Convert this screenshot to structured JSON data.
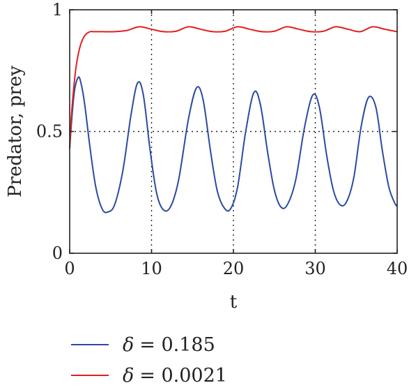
{
  "chart_data": {
    "type": "line",
    "title": "",
    "xlabel": "t",
    "ylabel": "Predator, prey",
    "xlim": [
      0,
      40
    ],
    "ylim": [
      0,
      1
    ],
    "xticks": [
      0,
      10,
      20,
      30,
      40
    ],
    "xtick_labels": [
      "0",
      "10",
      "20",
      "30",
      "40"
    ],
    "yticks": [
      0,
      0.5,
      1
    ],
    "ytick_labels": [
      "0",
      "0.5",
      "1"
    ],
    "grid": "dotted lines at x = 10, 20, 30 and y = 0.5",
    "legend_position": "bottom",
    "series": [
      {
        "name": "δ = 0.185",
        "legend_symbol": "δ",
        "legend_value": "= 0.185",
        "color": "#2b4aa0",
        "x": [
          0,
          0.3,
          0.6,
          1.0,
          1.3,
          1.8,
          2.5,
          3.2,
          4.0,
          4.7,
          5.5,
          6.5,
          7.5,
          8.3,
          9.0,
          9.8,
          10.6,
          11.4,
          12.3,
          13.3,
          14.5,
          15.5,
          16.3,
          17.2,
          18.0,
          18.8,
          19.6,
          20.5,
          21.5,
          22.5,
          23.3,
          24.2,
          25.0,
          25.8,
          26.6,
          27.6,
          28.7,
          29.7,
          30.5,
          31.4,
          32.2,
          33.0,
          33.8,
          34.7,
          35.6,
          36.5,
          37.4,
          38.2,
          39.0,
          39.8,
          40.0
        ],
        "y": [
          0.43,
          0.57,
          0.67,
          0.72,
          0.71,
          0.62,
          0.43,
          0.27,
          0.18,
          0.17,
          0.2,
          0.34,
          0.57,
          0.7,
          0.65,
          0.43,
          0.25,
          0.18,
          0.19,
          0.3,
          0.55,
          0.68,
          0.63,
          0.42,
          0.26,
          0.19,
          0.18,
          0.27,
          0.5,
          0.66,
          0.61,
          0.41,
          0.26,
          0.19,
          0.2,
          0.3,
          0.52,
          0.65,
          0.6,
          0.4,
          0.26,
          0.2,
          0.21,
          0.31,
          0.52,
          0.64,
          0.6,
          0.42,
          0.27,
          0.2,
          0.2
        ]
      },
      {
        "name": "δ = 0.0021",
        "legend_symbol": "δ",
        "legend_value": "= 0.0021",
        "color": "#e02020",
        "x": [
          0,
          0.2,
          0.5,
          0.8,
          1.2,
          1.6,
          2.0,
          2.5,
          3.0,
          4.0,
          5.5,
          7.0,
          8.5,
          10.0,
          11.5,
          13.0,
          14.5,
          16.0,
          17.5,
          19.0,
          20.5,
          22.0,
          23.5,
          25.0,
          26.5,
          28.0,
          29.5,
          31.0,
          32.5,
          34.0,
          35.5,
          37.0,
          38.5,
          40.0
        ],
        "y": [
          0.43,
          0.56,
          0.68,
          0.77,
          0.84,
          0.88,
          0.9,
          0.91,
          0.91,
          0.91,
          0.91,
          0.915,
          0.93,
          0.92,
          0.91,
          0.912,
          0.93,
          0.92,
          0.91,
          0.912,
          0.93,
          0.92,
          0.91,
          0.912,
          0.93,
          0.92,
          0.91,
          0.912,
          0.93,
          0.92,
          0.91,
          0.93,
          0.92,
          0.91
        ]
      }
    ]
  }
}
